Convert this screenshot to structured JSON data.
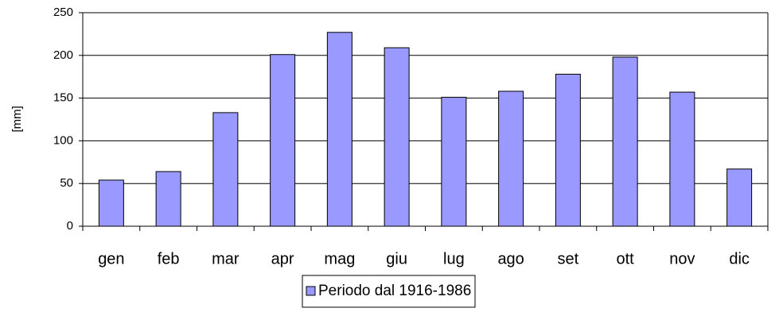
{
  "chart_data": {
    "type": "bar",
    "y_label": "[mm]",
    "categories": [
      "gen",
      "feb",
      "mar",
      "apr",
      "mag",
      "giu",
      "lug",
      "ago",
      "set",
      "ott",
      "nov",
      "dic"
    ],
    "series": [
      {
        "name": "Periodo dal 1916-1986",
        "color": "#9999ff",
        "values": [
          54,
          64,
          133,
          201,
          227,
          209,
          151,
          158,
          178,
          198,
          157,
          67
        ]
      }
    ],
    "ylim": [
      0,
      250
    ],
    "yticks": [
      0,
      50,
      100,
      150,
      200,
      250
    ],
    "grid": true,
    "legend": "bottom"
  }
}
